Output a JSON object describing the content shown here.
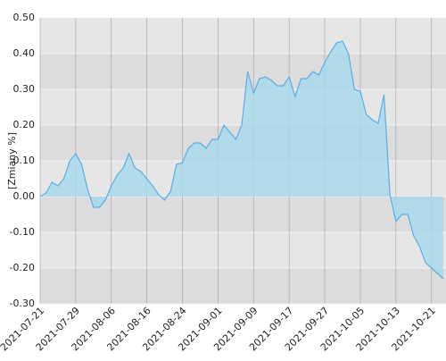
{
  "chart_data": {
    "type": "area",
    "y_label": "[Zmiany %]",
    "categories": [
      "2021-07-21",
      null,
      null,
      null,
      null,
      null,
      "2021-07-29",
      null,
      null,
      null,
      null,
      null,
      "2021-08-06",
      null,
      null,
      null,
      null,
      null,
      "2021-08-16",
      null,
      null,
      null,
      null,
      null,
      "2021-08-24",
      null,
      null,
      null,
      null,
      null,
      "2021-09-01",
      null,
      null,
      null,
      null,
      null,
      "2021-09-09",
      null,
      null,
      null,
      null,
      null,
      "2021-09-17",
      null,
      null,
      null,
      null,
      null,
      "2021-09-27",
      null,
      null,
      null,
      null,
      null,
      "2021-10-05",
      null,
      null,
      null,
      null,
      null,
      "2021-10-13",
      null,
      null,
      null,
      null,
      null,
      "2021-10-21",
      null,
      null
    ],
    "values": [
      0.0,
      0.01,
      0.04,
      0.03,
      0.05,
      0.1,
      0.12,
      0.09,
      0.02,
      -0.03,
      -0.03,
      -0.01,
      0.03,
      0.06,
      0.08,
      0.12,
      0.08,
      0.07,
      0.05,
      0.03,
      0.005,
      -0.01,
      0.015,
      0.09,
      0.095,
      0.135,
      0.15,
      0.15,
      0.135,
      0.16,
      0.16,
      0.2,
      0.18,
      0.16,
      0.2,
      0.35,
      0.29,
      0.33,
      0.335,
      0.325,
      0.31,
      0.31,
      0.335,
      0.28,
      0.33,
      0.33,
      0.35,
      0.34,
      0.375,
      0.405,
      0.43,
      0.435,
      0.4,
      0.3,
      0.295,
      0.23,
      0.215,
      0.205,
      0.285,
      0.005,
      -0.07,
      -0.05,
      -0.05,
      -0.11,
      -0.14,
      -0.185,
      -0.2,
      -0.215,
      -0.23
    ],
    "color": "#a8d8ec",
    "line_color": "#5aaee6",
    "ylim": [
      -0.3,
      0.5
    ],
    "yticks": [
      {
        "value": -0.3,
        "label": "-0.30"
      },
      {
        "value": -0.2,
        "label": "-0.20"
      },
      {
        "value": -0.1,
        "label": "-0.10"
      },
      {
        "value": 0,
        "label": "0.00"
      },
      {
        "value": 0.1,
        "label": "0.10"
      },
      {
        "value": 0.2,
        "label": "0.20"
      },
      {
        "value": 0.3,
        "label": "0.30"
      },
      {
        "value": 0.4,
        "label": "0.40"
      },
      {
        "value": 0.5,
        "label": "0.50"
      }
    ],
    "grid": true
  }
}
